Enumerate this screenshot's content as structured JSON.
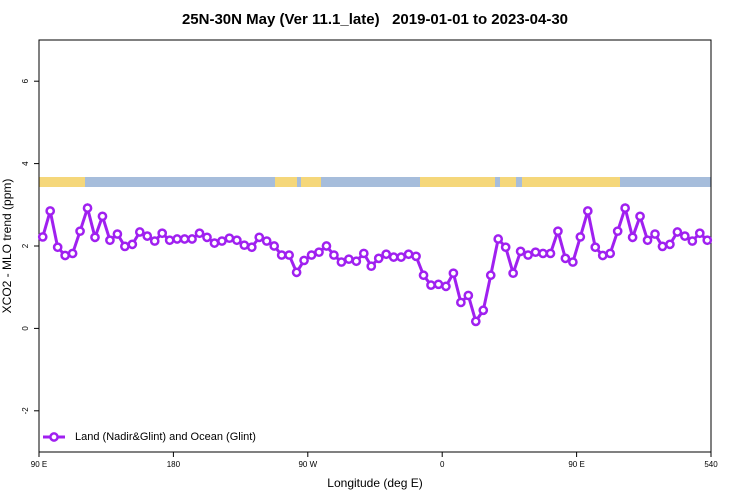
{
  "chart_data": {
    "type": "line",
    "title": "25N-30N May (Ver 11.1_late)   2019-01-01 to 2023-04-30",
    "xlabel": "Longitude (deg E)",
    "ylabel": "XCO2 - MLO trend (ppm)",
    "xlim": [
      90,
      540
    ],
    "ylim": [
      -3,
      7
    ],
    "xticks": [
      {
        "value": 90,
        "label": "90 E"
      },
      180,
      {
        "value": 270,
        "label": "90 W"
      },
      {
        "value": 360,
        "label": "0"
      },
      {
        "value": 450,
        "label": "90 E"
      },
      540
    ],
    "yticks": [
      -2,
      0,
      2,
      4,
      6
    ],
    "legend": "bottom-left",
    "grid": false,
    "x": [
      92.5,
      97.5,
      102.5,
      107.5,
      112.5,
      117.5,
      122.5,
      127.5,
      132.5,
      137.5,
      142.5,
      147.5,
      152.5,
      157.5,
      162.5,
      167.5,
      172.5,
      177.5,
      182.5,
      187.5,
      192.5,
      197.5,
      202.5,
      207.5,
      212.5,
      217.5,
      222.5,
      227.5,
      232.5,
      237.5,
      242.5,
      247.5,
      252.5,
      257.5,
      262.5,
      267.5,
      272.5,
      277.5,
      282.5,
      287.5,
      292.5,
      297.5,
      302.5,
      307.5,
      312.5,
      317.5,
      322.5,
      327.5,
      332.5,
      337.5,
      342.5,
      347.5,
      352.5,
      357.5,
      362.5,
      367.5,
      372.5,
      377.5,
      382.5,
      387.5,
      392.5,
      397.5,
      402.5,
      407.5,
      412.5,
      417.5,
      422.5,
      427.5,
      432.5,
      437.5,
      442.5,
      447.5,
      452.5,
      457.5,
      462.5,
      467.5,
      472.5,
      477.5,
      482.5,
      487.5,
      492.5,
      497.5,
      502.5,
      507.5,
      512.5,
      517.5,
      522.5,
      527.5,
      532.5,
      537.5
    ],
    "series": [
      {
        "name": "Land (Nadir&Glint) and Ocean (Glint)",
        "color": "#a020f0",
        "values": [
          2.22,
          2.85,
          1.97,
          1.77,
          1.82,
          2.36,
          2.92,
          2.21,
          2.72,
          2.14,
          2.29,
          1.99,
          2.04,
          2.34,
          2.24,
          2.12,
          2.31,
          2.14,
          2.17,
          2.17,
          2.17,
          2.31,
          2.21,
          2.07,
          2.12,
          2.19,
          2.14,
          2.02,
          1.97,
          2.21,
          2.12,
          2.0,
          1.78,
          1.78,
          1.36,
          1.65,
          1.78,
          1.85,
          2.0,
          1.78,
          1.61,
          1.68,
          1.63,
          1.82,
          1.51,
          1.7,
          1.8,
          1.73,
          1.73,
          1.8,
          1.75,
          1.29,
          1.05,
          1.07,
          1.02,
          1.34,
          0.63,
          0.8,
          0.17,
          0.44,
          1.29,
          2.17,
          1.97,
          1.34,
          1.87,
          1.78,
          1.85,
          1.82,
          1.82,
          2.36,
          1.7,
          1.61,
          2.22,
          2.85,
          1.97,
          1.77,
          1.82,
          2.36,
          2.92,
          2.21,
          2.72,
          2.14,
          2.29,
          1.99,
          2.04,
          2.34,
          2.24,
          2.12,
          2.31,
          2.14
        ]
      }
    ]
  }
}
